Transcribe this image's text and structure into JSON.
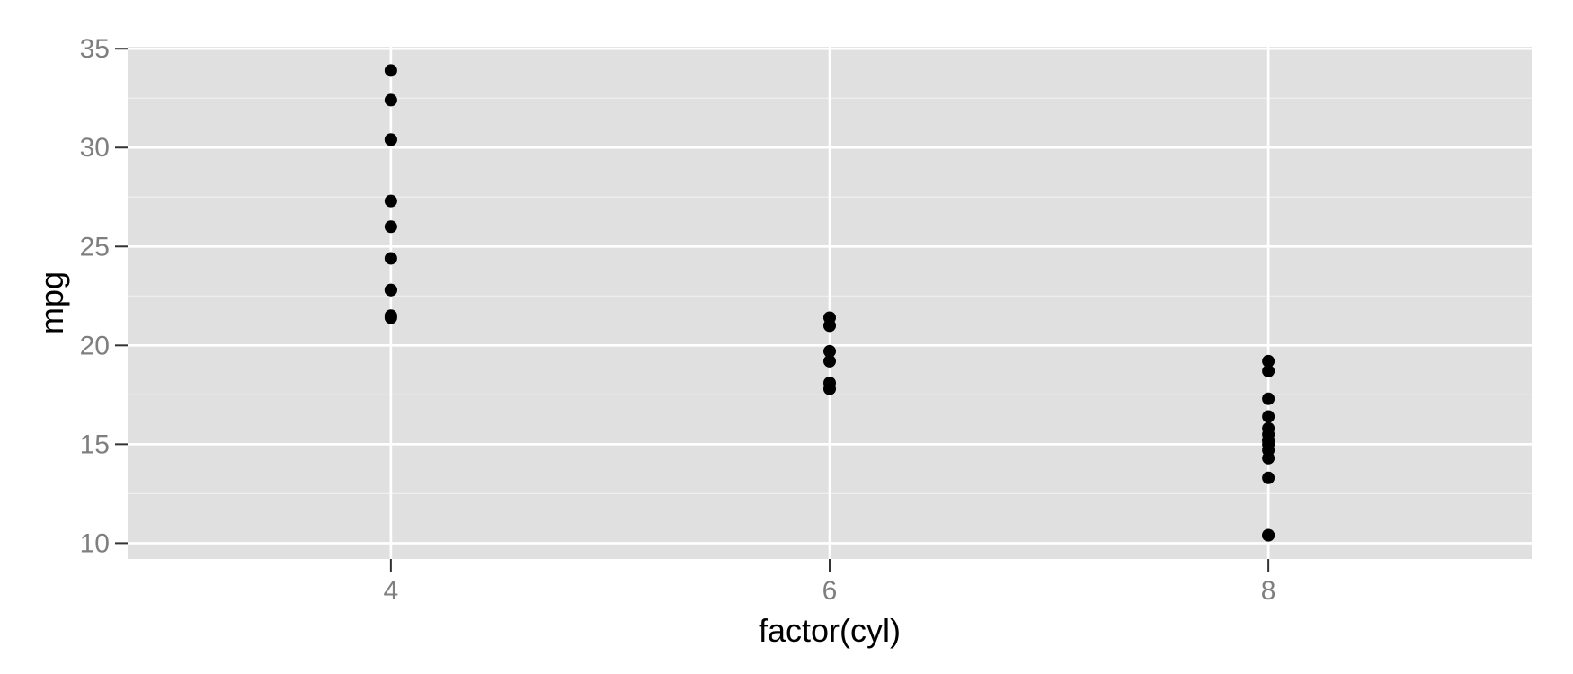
{
  "chart_data": {
    "type": "scatter",
    "title": "",
    "xlabel": "factor(cyl)",
    "ylabel": "mpg",
    "categories": [
      "4",
      "6",
      "8"
    ],
    "ylim": [
      9.2,
      35.1
    ],
    "y_ticks": [
      10,
      15,
      20,
      25,
      30,
      35
    ],
    "y_minor_ticks": [
      12.5,
      17.5,
      22.5,
      27.5,
      32.5
    ],
    "grid": true,
    "legend": "none",
    "colors": {
      "panel_background": "#e0e0e0",
      "grid_major": "#ffffff",
      "grid_minor": "#f0f0f0",
      "point": "#000000",
      "tick_label": "#7f7f7f",
      "axis_title": "#000000"
    },
    "series": [
      {
        "category": "4",
        "values": [
          22.8,
          24.4,
          22.8,
          32.4,
          30.4,
          33.9,
          21.5,
          27.3,
          26.0,
          30.4,
          21.4
        ]
      },
      {
        "category": "6",
        "values": [
          21.0,
          21.0,
          21.4,
          18.1,
          19.2,
          17.8,
          19.7
        ]
      },
      {
        "category": "8",
        "values": [
          18.7,
          14.3,
          16.4,
          17.3,
          15.2,
          10.4,
          10.4,
          14.7,
          15.5,
          15.2,
          13.3,
          19.2,
          15.8,
          15.0
        ]
      }
    ]
  }
}
